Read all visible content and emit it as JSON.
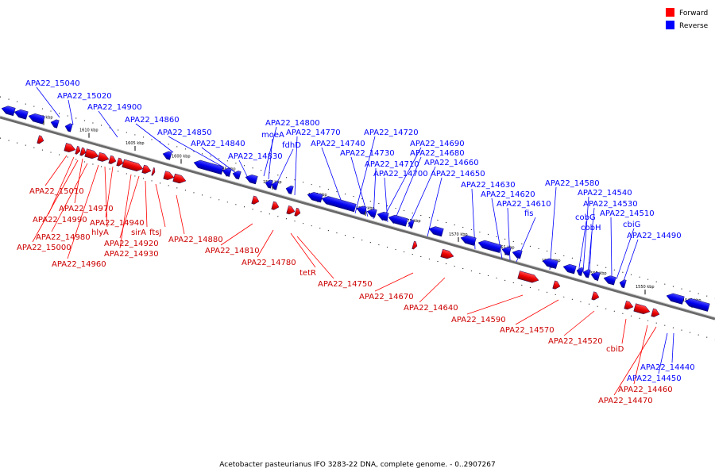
{
  "legend": {
    "forward": {
      "label": "Forward",
      "color": "#ff0000"
    },
    "reverse": {
      "label": "Reverse",
      "color": "#0000ff"
    }
  },
  "caption": "Acetobacter pasteurianus IFO 3283-22 DNA, complete genome. - 0..2907267",
  "ticks": [
    "1615 kbp",
    "1610 kbp",
    "1605 kbp",
    "1600 kbp",
    "1595 kbp",
    "1590 kbp",
    "1585 kbp",
    "1580 kbp",
    "1575 kbp",
    "1570 kbp",
    "1565 kbp",
    "1560 kbp",
    "1555 kbp",
    "1550 kbp",
    "1545 kbp"
  ],
  "reverse_labels": [
    "APA22_15040",
    "APA22_15020",
    "APA22_14900",
    "APA22_14860",
    "APA22_14850",
    "APA22_14840",
    "APA22_14830",
    "APA22_14800",
    "moeA",
    "fdhD",
    "APA22_14770",
    "APA22_14740",
    "APA22_14720",
    "APA22_14730",
    "APA22_14690",
    "APA22_14680",
    "APA22_14710",
    "APA22_14660",
    "APA22_14700",
    "APA22_14650",
    "APA22_14630",
    "APA22_14620",
    "APA22_14610",
    "fis",
    "APA22_14580",
    "APA22_14540",
    "APA22_14530",
    "cobG",
    "APA22_14510",
    "cobH",
    "cbiG",
    "APA22_14490",
    "APA22_14440",
    "APA22_14450"
  ],
  "forward_labels": [
    "APA22_15010",
    "APA22_14970",
    "APA22_14990",
    "APA22_14940",
    "APA22_14980",
    "hlyA",
    "APA22_15000",
    "sirA",
    "ftsJ",
    "APA22_14920",
    "APA22_14930",
    "APA22_14960",
    "APA22_14880",
    "APA22_14810",
    "APA22_14780",
    "tetR",
    "APA22_14750",
    "APA22_14670",
    "APA22_14640",
    "APA22_14590",
    "APA22_14570",
    "APA22_14520",
    "cbiD",
    "APA22_14460",
    "APA22_14470"
  ]
}
